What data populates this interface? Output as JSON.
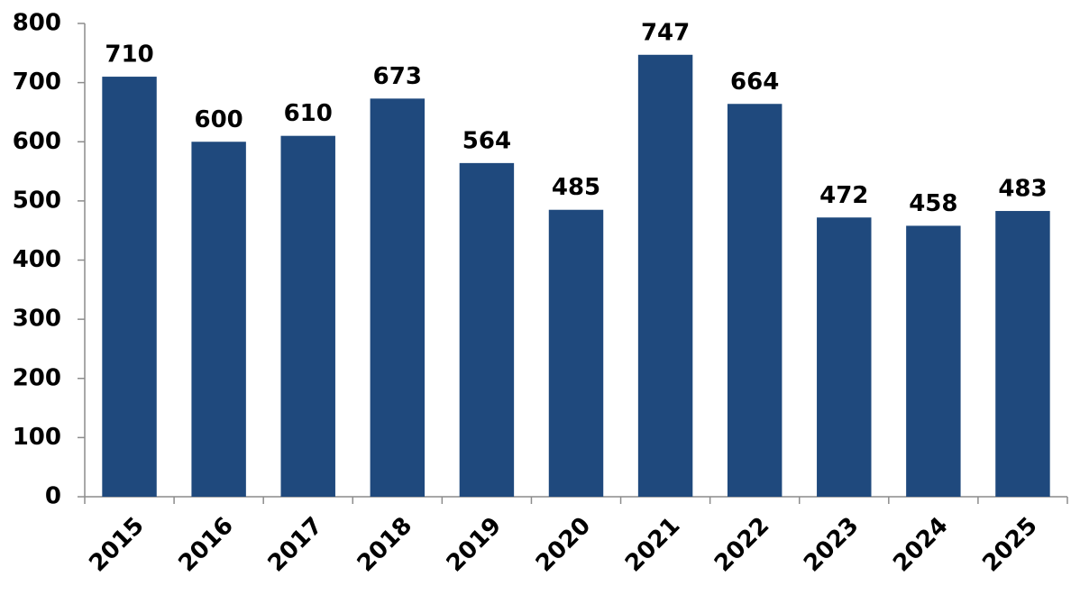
{
  "chart_data": {
    "type": "bar",
    "categories": [
      "2015",
      "2016",
      "2017",
      "2018",
      "2019",
      "2020",
      "2021",
      "2022",
      "2023",
      "2024",
      "2025"
    ],
    "values": [
      710,
      600,
      610,
      673,
      564,
      485,
      747,
      664,
      472,
      458,
      483
    ],
    "color": "#1f497d",
    "ylim": [
      0,
      800
    ],
    "yticks": [
      0,
      100,
      200,
      300,
      400,
      500,
      600,
      700,
      800
    ],
    "grid": false,
    "data_labels": true
  }
}
